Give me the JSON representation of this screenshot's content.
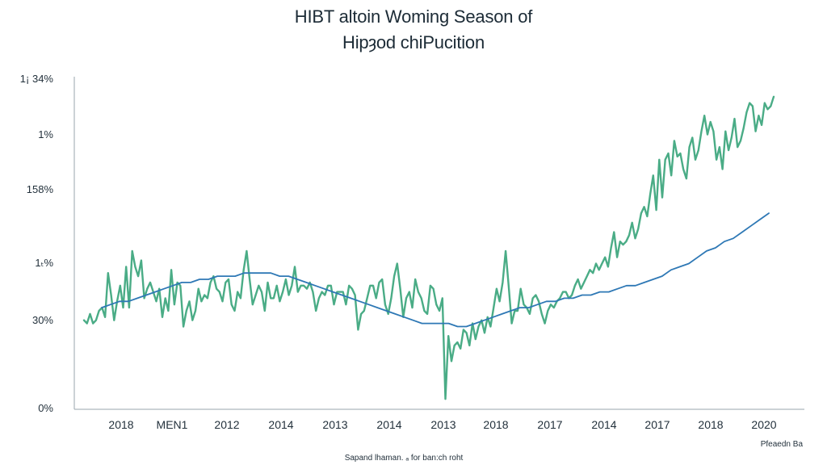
{
  "chart_data": {
    "type": "line",
    "title": "HIBT altoin Woming Season of",
    "subtitle": "Hipȝod chiPucition",
    "y_tick_labels": [
      "0%",
      "30%",
      "1ₜ%",
      "158%",
      "1%",
      "1¡ 34%"
    ],
    "x_tick_labels": [
      "2018",
      "MEN1",
      "2012",
      "2014",
      "2013",
      "2014",
      "2013",
      "2018",
      "2017",
      "2014",
      "2017",
      "2018",
      "2020"
    ],
    "footer_left": "Sapand lhaman. ₐ   for ban:ch roht",
    "footer_right": "Pfeaedn Ba",
    "grid": false,
    "legend": "none",
    "value_range": [
      0,
      100
    ],
    "series": [
      {
        "color": "#4aac86",
        "values": [
          27,
          26,
          29,
          26,
          27,
          30,
          31,
          28,
          42,
          35,
          27,
          33,
          38,
          31,
          44,
          31,
          49,
          44,
          41,
          46,
          34,
          37,
          39,
          36,
          33,
          37,
          28,
          34,
          30,
          43,
          32,
          39,
          38,
          25,
          30,
          33,
          27,
          30,
          37,
          33,
          35,
          34,
          39,
          41,
          37,
          36,
          33,
          39,
          40,
          32,
          30,
          36,
          34,
          43,
          49,
          40,
          32,
          35,
          38,
          36,
          30,
          39,
          34,
          34,
          38,
          33,
          36,
          40,
          35,
          38,
          44,
          36,
          38,
          38,
          37,
          39,
          36,
          30,
          34,
          36,
          35,
          38,
          38,
          32,
          36,
          36,
          36,
          32,
          38,
          37,
          35,
          24,
          29,
          30,
          34,
          38,
          38,
          34,
          39,
          40,
          32,
          29,
          34,
          41,
          45,
          37,
          28,
          34,
          36,
          31,
          40,
          36,
          34,
          30,
          29,
          38,
          37,
          32,
          30,
          34,
          2,
          22,
          14,
          19,
          20,
          18,
          24,
          23,
          19,
          26,
          21,
          25,
          27,
          23,
          28,
          25,
          31,
          37,
          33,
          39,
          49,
          38,
          26,
          30,
          30,
          37,
          32,
          31,
          29,
          34,
          35,
          33,
          29,
          26,
          30,
          32,
          31,
          33,
          34,
          36,
          36,
          34,
          35,
          38,
          40,
          37,
          39,
          41,
          43,
          42,
          45,
          43,
          45,
          47,
          44,
          50,
          55,
          47,
          52,
          51,
          52,
          54,
          58,
          53,
          56,
          61,
          63,
          60,
          67,
          73,
          62,
          78,
          66,
          78,
          80,
          73,
          84,
          79,
          80,
          75,
          72,
          82,
          85,
          78,
          81,
          87,
          92,
          86,
          90,
          87,
          78,
          82,
          75,
          87,
          81,
          85,
          91,
          82,
          84,
          88,
          93,
          96,
          95,
          87,
          92,
          89,
          96,
          94,
          95,
          98
        ]
      },
      {
        "color": "#2e78b5",
        "values": [
          31,
          32,
          33,
          33,
          34,
          35,
          36,
          37,
          38,
          39,
          39,
          40,
          40,
          41,
          41,
          41,
          42,
          42,
          42,
          42,
          41,
          41,
          40,
          39,
          38,
          37,
          36,
          35,
          34,
          33,
          32,
          31,
          30,
          29,
          28,
          27,
          26,
          26,
          26,
          26,
          25,
          25,
          26,
          27,
          28,
          29,
          30,
          31,
          31,
          32,
          33,
          33,
          34,
          34,
          35,
          35,
          36,
          36,
          37,
          38,
          38,
          39,
          40,
          41,
          43,
          44,
          45,
          47,
          49,
          50,
          52,
          53,
          55,
          57,
          59,
          61
        ]
      }
    ]
  }
}
